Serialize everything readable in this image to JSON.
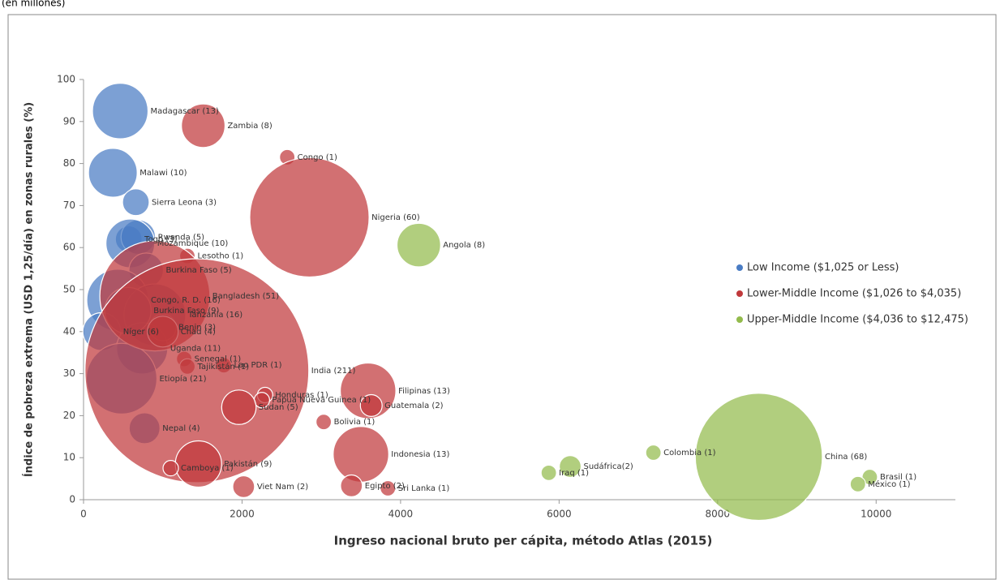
{
  "chart_data": {
    "type": "bubble",
    "subtitle": "(en millones)",
    "xlabel": "Ingreso nacional  bruto per cápita, método Atlas (2015)",
    "ylabel": "Índice de pobreza extrema (USD 1,25/día) en zonas rurales (%)",
    "xlim": [
      0,
      11000
    ],
    "xticks": [
      0,
      2000,
      4000,
      6000,
      8000,
      10000
    ],
    "ylim": [
      0,
      100
    ],
    "yticks": [
      0,
      10,
      20,
      30,
      40,
      50,
      60,
      70,
      80,
      90,
      100
    ],
    "legend": "right",
    "series": [
      {
        "name": "Low Income ($1,025 or Less)",
        "color": "#4a7cc4",
        "x": [
          463,
          370,
          660,
          570,
          690,
          590,
          790,
          430,
          900,
          230,
          740,
          480,
          770,
          560,
          1000
        ],
        "values": [
          92.5,
          77.8,
          70.8,
          62,
          62.5,
          61,
          54.6,
          47.5,
          44,
          40,
          36,
          28.8,
          17,
          45,
          41
        ],
        "sizes": [
          13,
          10,
          3,
          3,
          5,
          10,
          5,
          16,
          16,
          6,
          11,
          21,
          4,
          9,
          3
        ],
        "labels": [
          "Madagascar (13)",
          "Malawi  (10)",
          "Sierra Leona (3)",
          "Togo (3)",
          "Rwanda (5)",
          "Mozambique (10)",
          "Burkina Faso (5)",
          "Congo, R. D. (16)",
          "Tanzania (16)",
          "Níger (6)",
          "Uganda (11)",
          "Etiopía (21)",
          "Nepal (4)",
          "Burkina Faso (9)",
          "Benin (3)"
        ]
      },
      {
        "name": "Lower-Middle Income ($1,026 to $4,035)",
        "color": "#c0393b",
        "x": [
          1510,
          2570,
          2850,
          1310,
          900,
          1000,
          1270,
          1770,
          1310,
          1430,
          2290,
          2250,
          1960,
          3590,
          3630,
          3030,
          3500,
          1450,
          1100,
          2020,
          3380,
          3840
        ],
        "values": [
          89,
          81.5,
          67.2,
          58,
          48.5,
          40,
          33.5,
          32,
          31.7,
          30.7,
          24.9,
          23.7,
          22,
          25.9,
          22.4,
          18.5,
          10.8,
          8.5,
          7.5,
          3.1,
          3.3,
          2.7
        ],
        "sizes": [
          8,
          1,
          60,
          1,
          51,
          4,
          1,
          1,
          1,
          211,
          1,
          1,
          5,
          13,
          2,
          1,
          13,
          9,
          1,
          2,
          2,
          1
        ],
        "labels": [
          "Zambia (8)",
          "Congo (1)",
          "Nigeria (60)",
          "Lesotho (1)",
          "Bangladesh (51)",
          "Chad (4)",
          "Senegal (1)",
          "Lao PDR (1)",
          "Tajikistán (1)",
          "India (211)",
          "Honduras (1)",
          "Papua Nueva Guinea (1)",
          "Sudan (5)",
          "Filipinas (13)",
          "Guatemala (2)",
          "Bolivia (1)",
          "Indonesia (13)",
          "Pakistán (9)",
          "Camboya (1)",
          "Viet Nam (2)",
          "Egipto (2)",
          "Sri Lanka (1)"
        ]
      },
      {
        "name": "Upper-Middle Income ($4,036 to $12,475)",
        "color": "#93bb4c",
        "x": [
          4230,
          6140,
          5870,
          7190,
          8520,
          9920,
          9770
        ],
        "values": [
          60.6,
          7.9,
          6.4,
          11.2,
          10.2,
          5.4,
          3.7
        ],
        "sizes": [
          8,
          2,
          1,
          1,
          68,
          1,
          1
        ],
        "labels": [
          "Angola (8)",
          "Sudáfrica(2)",
          "Iraq (1)",
          "Colombia (1)",
          "China (68)",
          "Brasil (1)",
          "México (1)"
        ]
      }
    ]
  }
}
